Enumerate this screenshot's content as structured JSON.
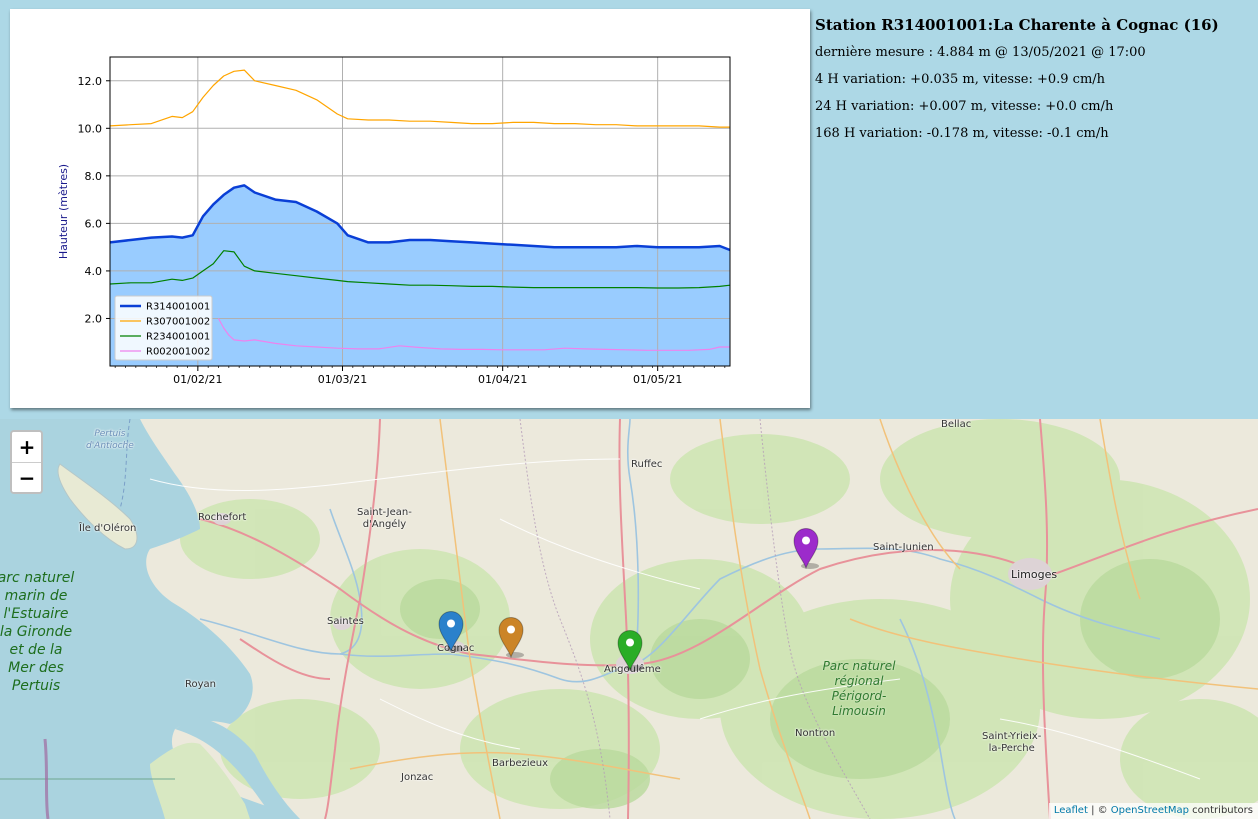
{
  "station": {
    "title": "Station R314001001:La Charente à Cognac (16)",
    "last_measure": "dernière mesure : 4.884 m @ 13/05/2021 @ 17:00",
    "var_4h": "4 H variation: +0.035 m, vitesse: +0.9 cm/h",
    "var_24h": "24 H variation: +0.007 m, vitesse: +0.0 cm/h",
    "var_168h": "168 H variation: -0.178 m, vitesse: -0.1 cm/h"
  },
  "chart_data": {
    "type": "line",
    "ylabel": "Hauteur (mètres)",
    "ylim": [
      0.0,
      13.0
    ],
    "yticks": [
      "2.0",
      "4.0",
      "6.0",
      "8.0",
      "10.0",
      "12.0"
    ],
    "ytick_values": [
      2,
      4,
      6,
      8,
      10,
      12
    ],
    "xticks": [
      "01/02/21",
      "01/03/21",
      "01/04/21",
      "01/05/21"
    ],
    "xtick_days": [
      31,
      59,
      90,
      120
    ],
    "xlim_days": [
      14,
      134
    ],
    "grid": true,
    "legend_position": "lower-left",
    "series": [
      {
        "name": "R314001001",
        "color": "#0a3fd6",
        "width": 2.5,
        "fill": "#99ccff",
        "x": [
          14,
          18,
          22,
          26,
          28,
          30,
          32,
          34,
          36,
          38,
          40,
          42,
          46,
          50,
          54,
          58,
          60,
          64,
          68,
          72,
          76,
          80,
          84,
          88,
          92,
          96,
          100,
          104,
          108,
          112,
          116,
          120,
          124,
          128,
          132,
          134
        ],
        "y": [
          5.2,
          5.3,
          5.4,
          5.45,
          5.4,
          5.5,
          6.3,
          6.8,
          7.2,
          7.5,
          7.6,
          7.3,
          7.0,
          6.9,
          6.5,
          6.0,
          5.5,
          5.2,
          5.2,
          5.3,
          5.3,
          5.25,
          5.2,
          5.15,
          5.1,
          5.05,
          5.0,
          5.0,
          5.0,
          5.0,
          5.05,
          5.0,
          5.0,
          5.0,
          5.05,
          4.88
        ]
      },
      {
        "name": "R307001002",
        "color": "#ffa500",
        "width": 1.2,
        "x": [
          14,
          18,
          22,
          26,
          28,
          30,
          32,
          34,
          36,
          38,
          40,
          42,
          46,
          50,
          54,
          58,
          60,
          64,
          68,
          72,
          76,
          80,
          84,
          88,
          92,
          96,
          100,
          104,
          108,
          112,
          116,
          120,
          124,
          128,
          132,
          134
        ],
        "y": [
          10.1,
          10.15,
          10.2,
          10.5,
          10.45,
          10.7,
          11.3,
          11.8,
          12.2,
          12.4,
          12.45,
          12.0,
          11.8,
          11.6,
          11.2,
          10.6,
          10.4,
          10.35,
          10.35,
          10.3,
          10.3,
          10.25,
          10.2,
          10.2,
          10.25,
          10.25,
          10.2,
          10.2,
          10.15,
          10.15,
          10.1,
          10.1,
          10.1,
          10.1,
          10.05,
          10.05
        ]
      },
      {
        "name": "R234001001",
        "color": "#008000",
        "width": 1.2,
        "x": [
          14,
          18,
          22,
          26,
          28,
          30,
          32,
          34,
          36,
          38,
          40,
          42,
          46,
          50,
          54,
          58,
          60,
          64,
          68,
          72,
          76,
          80,
          84,
          88,
          92,
          96,
          100,
          104,
          108,
          112,
          116,
          120,
          124,
          128,
          132,
          134
        ],
        "y": [
          3.45,
          3.5,
          3.5,
          3.65,
          3.6,
          3.7,
          4.0,
          4.3,
          4.85,
          4.8,
          4.2,
          4.0,
          3.9,
          3.8,
          3.7,
          3.6,
          3.55,
          3.5,
          3.45,
          3.4,
          3.4,
          3.38,
          3.35,
          3.35,
          3.32,
          3.3,
          3.3,
          3.3,
          3.3,
          3.3,
          3.3,
          3.28,
          3.28,
          3.3,
          3.35,
          3.4
        ]
      },
      {
        "name": "R002001002",
        "color": "#ee82ee",
        "width": 1.2,
        "x": [
          35,
          36,
          37,
          38,
          40,
          42,
          46,
          50,
          54,
          58,
          62,
          66,
          70,
          74,
          78,
          82,
          86,
          90,
          94,
          98,
          102,
          106,
          110,
          114,
          118,
          122,
          126,
          130,
          132,
          134
        ],
        "y": [
          2.0,
          1.6,
          1.3,
          1.1,
          1.05,
          1.1,
          0.95,
          0.85,
          0.8,
          0.75,
          0.72,
          0.72,
          0.85,
          0.78,
          0.72,
          0.7,
          0.7,
          0.68,
          0.68,
          0.68,
          0.75,
          0.72,
          0.7,
          0.68,
          0.66,
          0.66,
          0.66,
          0.7,
          0.8,
          0.8
        ]
      }
    ]
  },
  "map": {
    "zoom_in_label": "+",
    "zoom_out_label": "−",
    "places": {
      "bellac": "Bellac",
      "pertuis": "Pertuis\nd'Antioche",
      "ruffec": "Ruffec",
      "oleron": "Île d'Oléron",
      "rochefort": "Rochefort",
      "saint_jean": "Saint-Jean-\nd'Angély",
      "saint_junien": "Saint-Junien",
      "limoges": "Limoges",
      "saintes": "Saintes",
      "cognac": "Cognac",
      "angouleme": "Angoulême",
      "royan": "Royan",
      "nontron": "Nontron",
      "saint_yrieix": "Saint-Yrieix-\nla-Perche",
      "jonzac": "Jonzac",
      "barbezieux": "Barbezieux"
    },
    "parks": {
      "estuaire": "arc naturel\nmarin de\nl'Estuaire\nla Gironde\net de la\nMer des\nPertuis",
      "perigord": "Parc naturel\nrégional\nPérigord-\nLimousin"
    },
    "markers": [
      {
        "name": "marker-blue",
        "color": "#2a81cb"
      },
      {
        "name": "marker-orange",
        "color": "#cb8427"
      },
      {
        "name": "marker-green",
        "color": "#2aad27"
      },
      {
        "name": "marker-violet",
        "color": "#9c2bcb"
      }
    ],
    "attribution": {
      "leaflet": "Leaflet",
      "sep": " | © ",
      "osm": "OpenStreetMap",
      "contrib": " contributors"
    }
  }
}
